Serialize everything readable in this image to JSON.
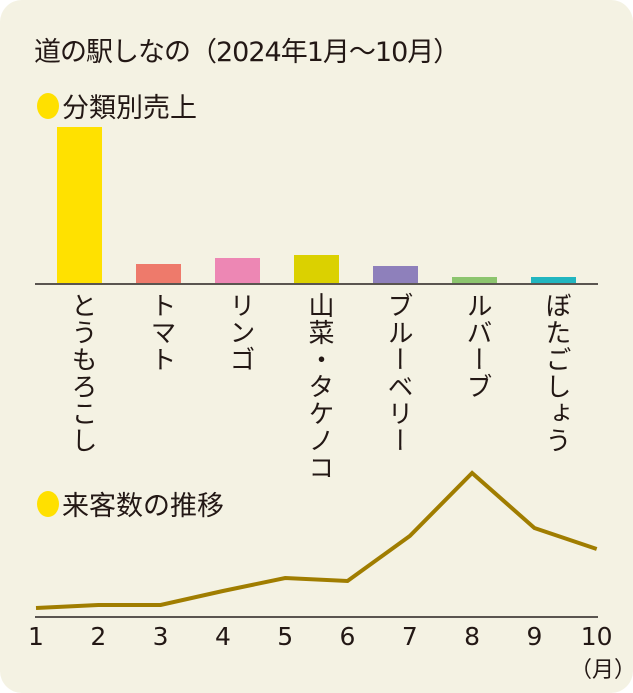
{
  "title": "道の駅しなの（2024年1月〜10月）",
  "sections": {
    "sales": {
      "heading": "分類別売上",
      "bullet_color": "#ffe000"
    },
    "visitors": {
      "heading": "来客数の推移",
      "bullet_color": "#ffe000"
    }
  },
  "chart_data": [
    {
      "type": "bar",
      "title": "分類別売上",
      "categories": [
        "とうもろこし",
        "トマト",
        "リンゴ",
        "山菜・タケノコ",
        "ブルーベリー",
        "ルバーブ",
        "ぼたごしょう"
      ],
      "values": [
        157,
        20,
        26,
        29,
        18,
        7,
        7
      ],
      "value_note": "relative bar heights (no axis values shown)",
      "colors": [
        "#ffe100",
        "#ee7a6b",
        "#ed87b4",
        "#dbd100",
        "#8e80bb",
        "#8cc56e",
        "#21b6c0"
      ],
      "xlabel": "",
      "ylabel": "",
      "grid": false,
      "legend": "none"
    },
    {
      "type": "line",
      "title": "来客数の推移",
      "x": [
        1,
        2,
        3,
        4,
        5,
        6,
        7,
        8,
        9,
        10
      ],
      "x_tick_labels": [
        "1",
        "2",
        "3",
        "4",
        "5",
        "6",
        "7",
        "8",
        "9",
        "10"
      ],
      "values": [
        9,
        12,
        12,
        26,
        39,
        36,
        81,
        144,
        89,
        68
      ],
      "value_note": "relative heights above baseline (no y-axis values shown)",
      "xlabel": "（月）",
      "ylabel": "",
      "grid": false,
      "legend": "none",
      "line_color": "#a07d00"
    }
  ]
}
